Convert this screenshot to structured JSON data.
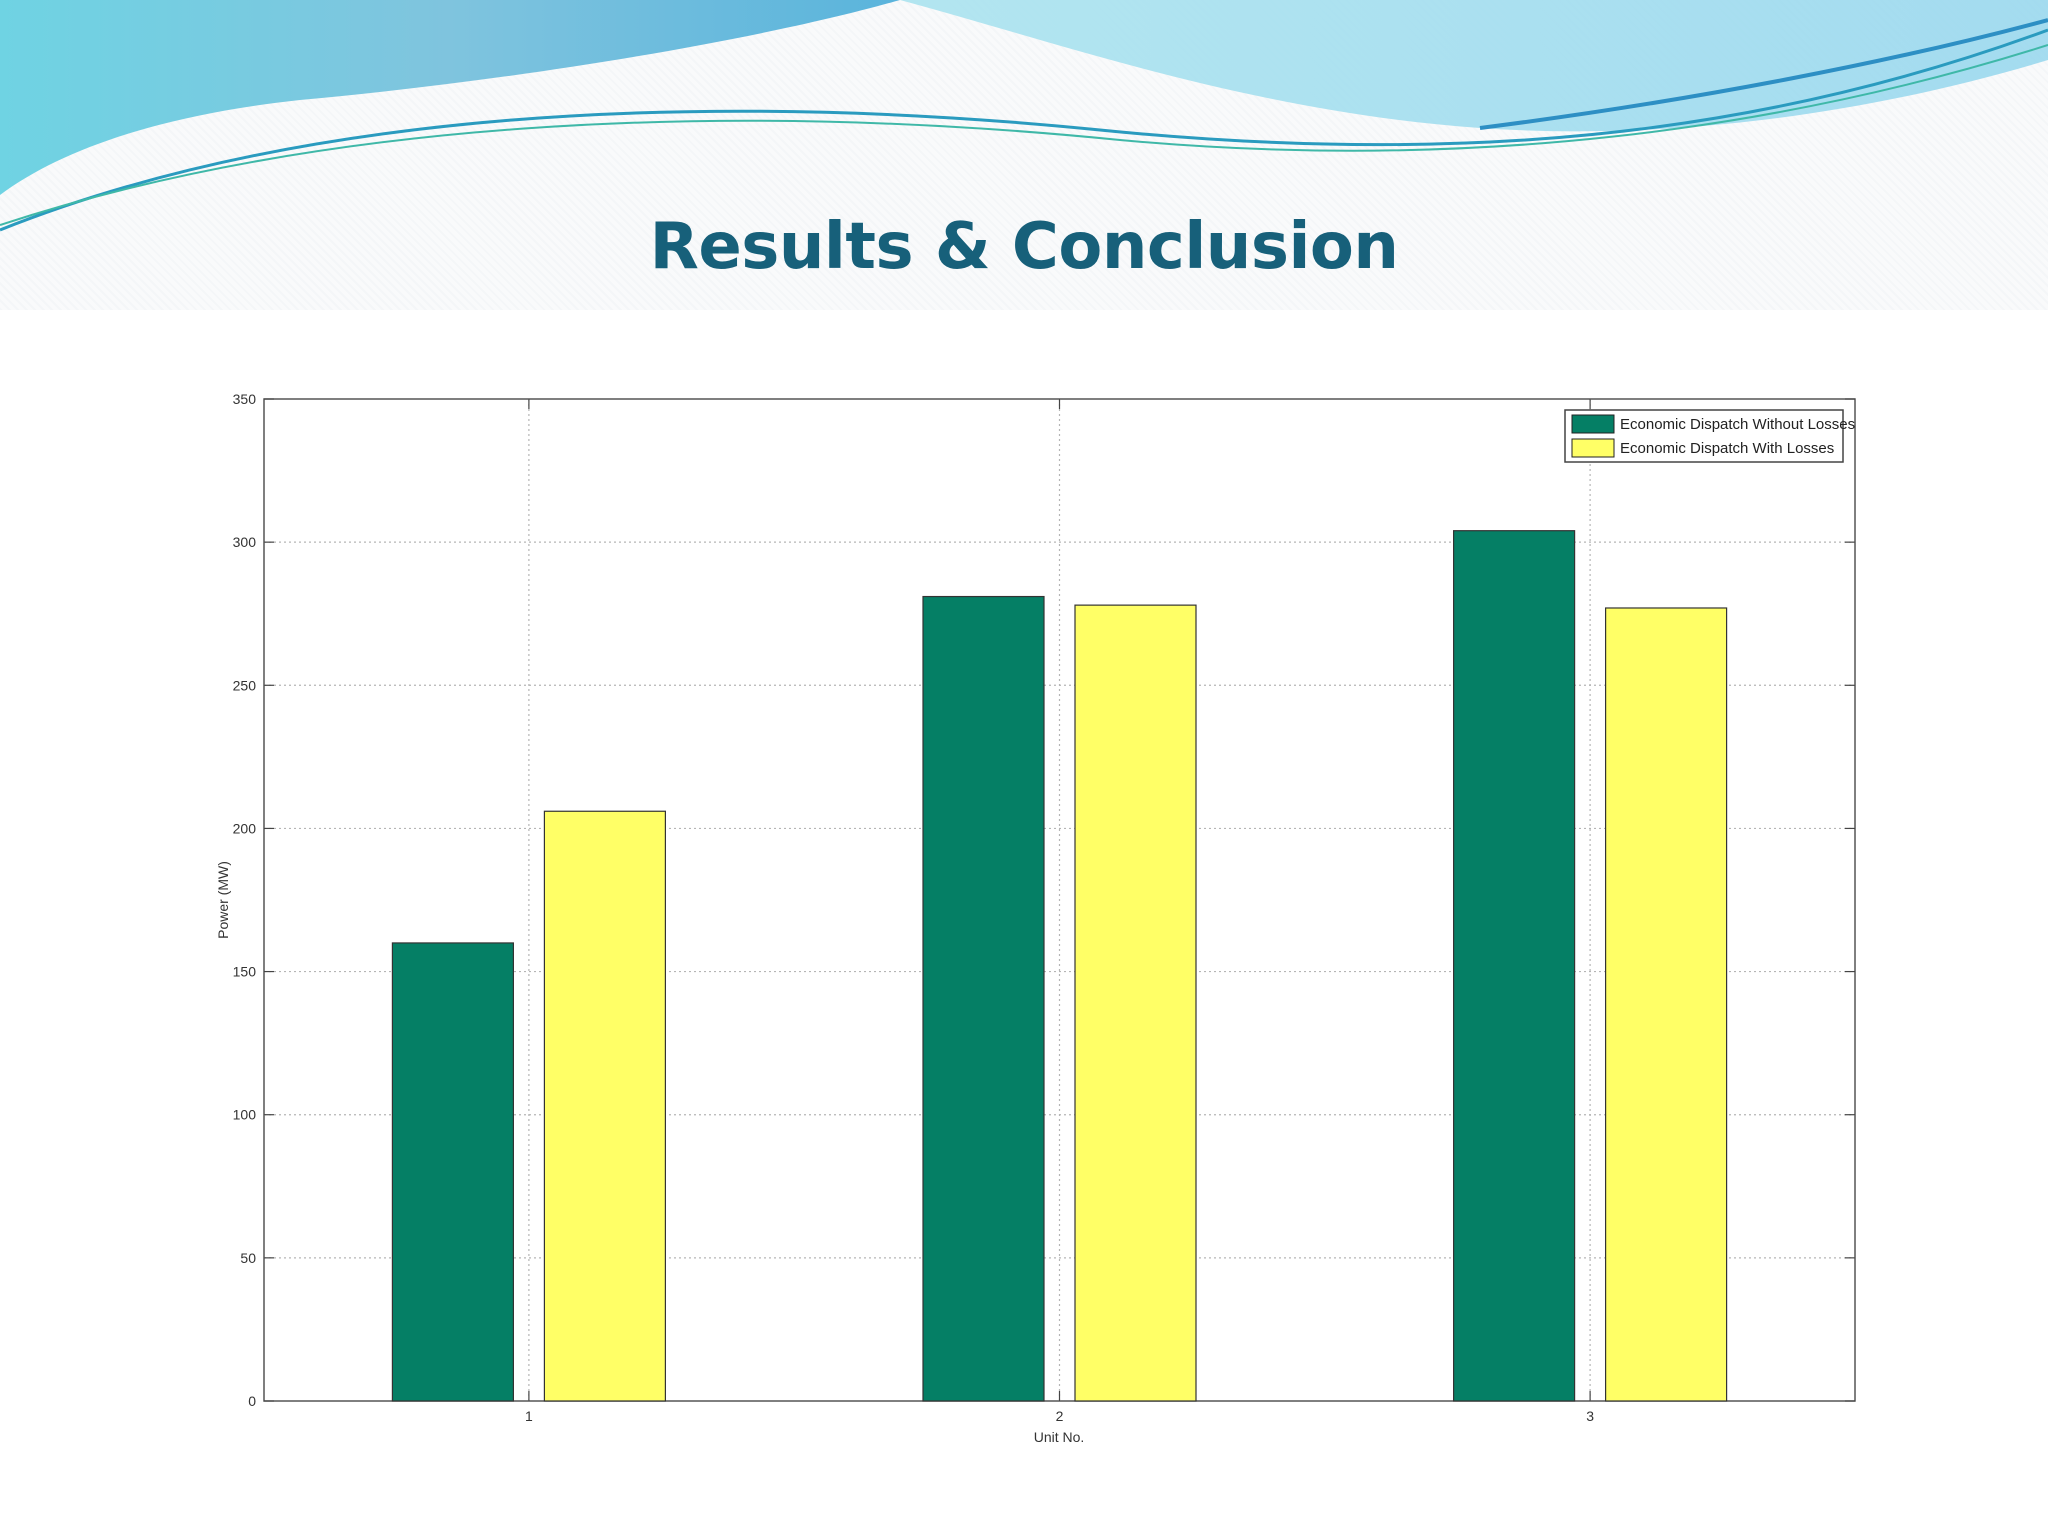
{
  "slide": {
    "title": "Results & Conclusion"
  },
  "colors": {
    "title": "#17607a",
    "series_without_losses": "#057f65",
    "series_with_losses": "#ffff66",
    "wave_dark": "#2fa6c9",
    "wave_light": "#8fdbe6"
  },
  "chart_data": {
    "type": "bar",
    "categories": [
      "1",
      "2",
      "3"
    ],
    "series": [
      {
        "name": "Economic Dispatch Without Losses",
        "values": [
          160,
          281,
          304
        ],
        "color": "#057f65"
      },
      {
        "name": "Economic Dispatch With Losses",
        "values": [
          206,
          278,
          277
        ],
        "color": "#ffff66"
      }
    ],
    "xlabel": "Unit No.",
    "ylabel": "Power (MW)",
    "ylim": [
      0,
      350
    ],
    "yticks": [
      0,
      50,
      100,
      150,
      200,
      250,
      300,
      350
    ],
    "grid": true,
    "legend_position": "top-right"
  }
}
